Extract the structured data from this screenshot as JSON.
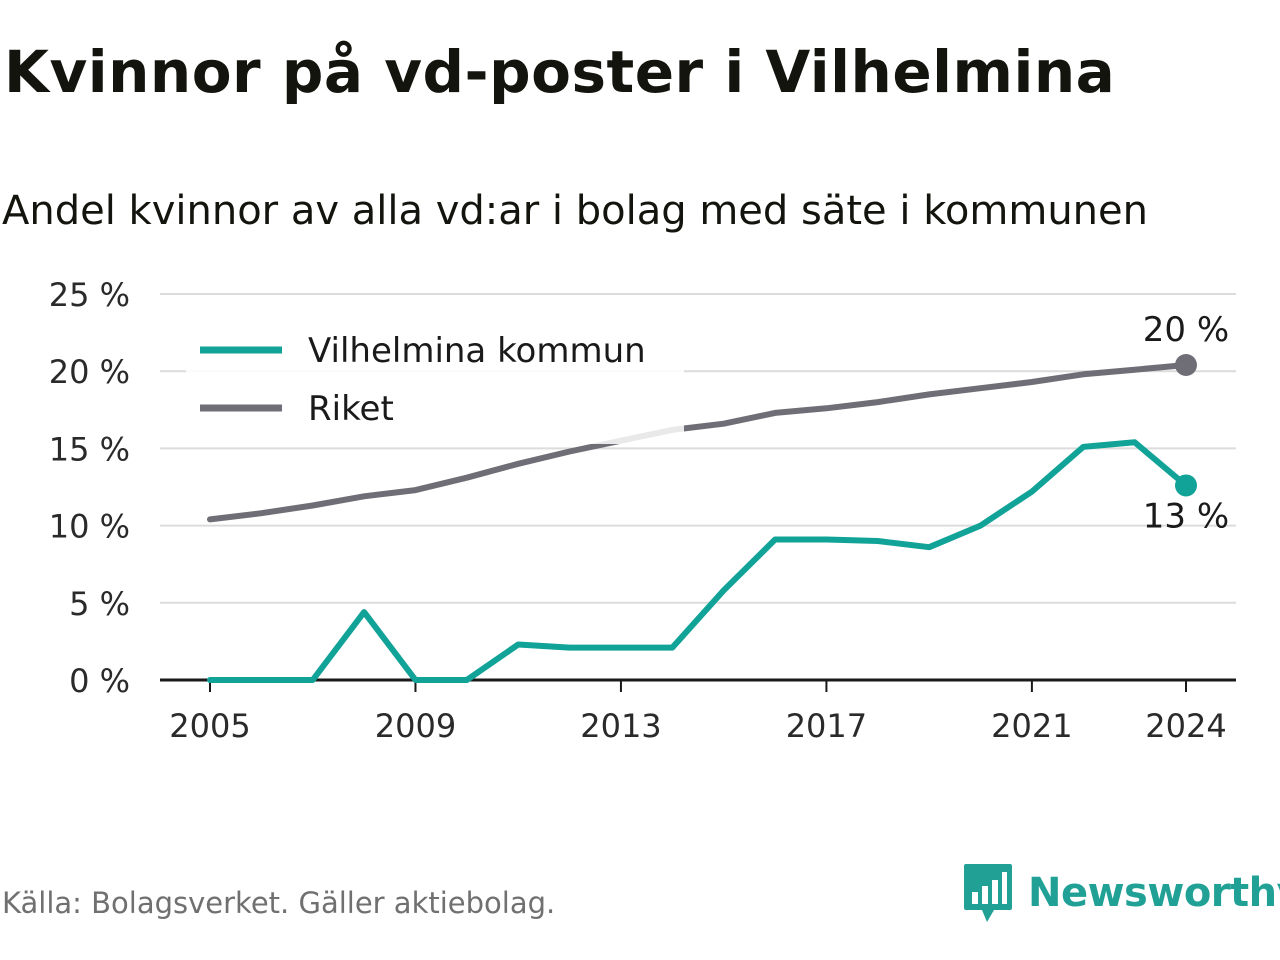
{
  "title": "Kvinnor på vd-poster i Vilhelmina",
  "subtitle": "Andel kvinnor av alla vd:ar i bolag med säte i kommunen",
  "source": "Källa: Bolagsverket. Gäller aktiebolag.",
  "brand": {
    "name": "Newsworthy",
    "color": "#21a196",
    "icon": "bar-chart-speech-bubble-icon"
  },
  "chart_data": {
    "type": "line",
    "x": [
      2005,
      2006,
      2007,
      2008,
      2009,
      2010,
      2011,
      2012,
      2013,
      2014,
      2015,
      2016,
      2017,
      2018,
      2019,
      2020,
      2021,
      2022,
      2023,
      2024
    ],
    "xticks": [
      "2005",
      "2009",
      "2013",
      "2017",
      "2021",
      "2024"
    ],
    "yticks": [
      "0 %",
      "5 %",
      "10 %",
      "15 %",
      "20 %",
      "25 %"
    ],
    "ylim": [
      0,
      25
    ],
    "grid": true,
    "legend_position": "top-left",
    "series": [
      {
        "name": "Vilhelmina kommun",
        "color": "#11a397",
        "values": [
          0,
          0,
          0,
          4.4,
          0,
          0,
          2.3,
          2.1,
          2.1,
          2.1,
          5.8,
          9.1,
          9.1,
          9.0,
          8.6,
          10.0,
          12.2,
          15.1,
          15.4,
          12.6
        ],
        "end_label": "13 %",
        "end_label_position": "below"
      },
      {
        "name": "Riket",
        "color": "#6f6e76",
        "values": [
          10.4,
          10.8,
          11.3,
          11.9,
          12.3,
          13.1,
          14.0,
          14.8,
          15.5,
          16.2,
          16.6,
          17.3,
          17.6,
          18.0,
          18.5,
          18.9,
          19.3,
          19.8,
          20.1,
          20.4
        ],
        "end_label": "20 %",
        "end_label_position": "above"
      }
    ]
  }
}
